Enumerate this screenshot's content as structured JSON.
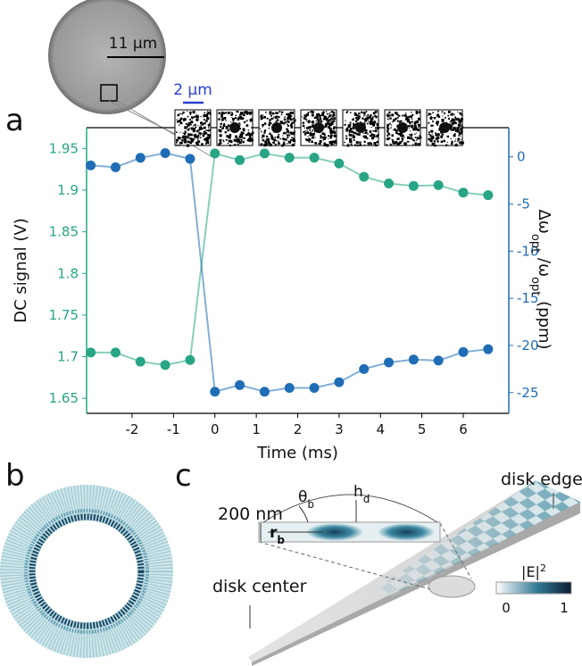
{
  "figure": {
    "panel_labels": [
      "a",
      "b",
      "c"
    ],
    "micrograph_scale_bar": "11 μm",
    "inset_scale_bar": "2 μm"
  },
  "chart_data": {
    "type": "line",
    "xlabel": "Time (ms)",
    "ylabel": "DC signal (V)",
    "y2label": [
      "Δω",
      "opt",
      " /ω",
      "opt",
      " (ppm)"
    ],
    "x": [
      -3,
      -2.4,
      -1.8,
      -1.2,
      -0.6,
      0,
      0.6,
      1.2,
      1.8,
      2.4,
      3,
      3.6,
      4.2,
      4.8,
      5.4,
      6,
      6.6
    ],
    "series": [
      {
        "color": "#27a585",
        "axis": "y",
        "values": [
          1.705,
          1.705,
          1.694,
          1.69,
          1.696,
          1.944,
          1.936,
          1.944,
          1.939,
          1.939,
          1.932,
          1.916,
          1.908,
          1.905,
          1.906,
          1.897,
          1.894
        ]
      },
      {
        "color": "#1f6db5",
        "axis": "y2",
        "values": [
          -0.9,
          -1.1,
          -0.1,
          0.4,
          -0.2,
          -24.9,
          -24.2,
          -24.9,
          -24.5,
          -24.5,
          -23.9,
          -22.5,
          -21.8,
          -21.5,
          -21.6,
          -20.7,
          -20.4
        ]
      }
    ],
    "xlim": [
      -3.1,
      7.1
    ],
    "xticks": [
      -2,
      -1,
      0,
      1,
      2,
      3,
      4,
      5,
      6
    ],
    "ylim": [
      1.632,
      1.975
    ],
    "yticks": [
      1.65,
      1.7,
      1.75,
      1.8,
      1.85,
      1.9,
      1.95
    ],
    "y2lim": [
      -27.2,
      3.1
    ],
    "y2ticks": [
      0,
      -5,
      -10,
      -15,
      -20,
      -25
    ]
  },
  "panel_c": {
    "thickness": "200 nm",
    "angle": [
      "θ",
      "b"
    ],
    "height": [
      "h",
      "d"
    ],
    "radius": [
      "r",
      "b"
    ],
    "disk_edge": "disk edge",
    "disk_center": "disk center",
    "colorbar": {
      "label": [
        "|E|",
        "2"
      ],
      "ticks": [
        0,
        1
      ]
    }
  }
}
